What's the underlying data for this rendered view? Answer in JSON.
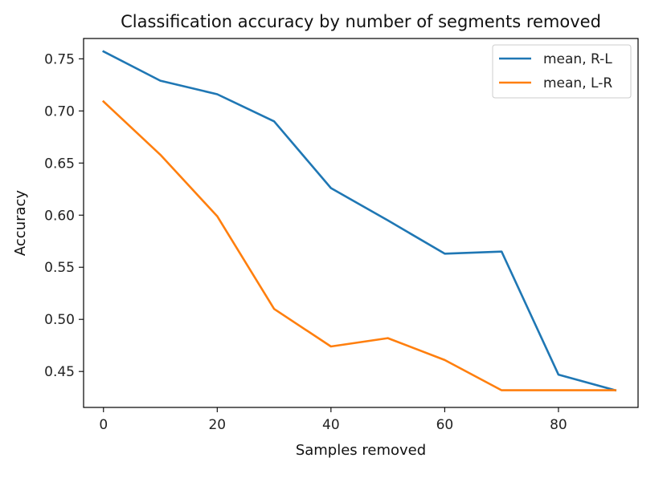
{
  "chart_data": {
    "type": "line",
    "title": "Classification accuracy by number of segments removed",
    "xlabel": "Samples removed",
    "ylabel": "Accuracy",
    "xlim": [
      -3.5,
      94
    ],
    "ylim": [
      0.4155,
      0.7695
    ],
    "xticks": [
      0,
      20,
      40,
      60,
      80
    ],
    "yticks": [
      0.45,
      0.5,
      0.55,
      0.6,
      0.65,
      0.7,
      0.75
    ],
    "ytick_labels": [
      "0.45",
      "0.50",
      "0.55",
      "0.60",
      "0.65",
      "0.70",
      "0.75"
    ],
    "grid": false,
    "legend_position": "top-right",
    "x": [
      0,
      10,
      20,
      30,
      40,
      50,
      60,
      70,
      80,
      90
    ],
    "series": [
      {
        "name": "mean, R-L",
        "color": "#1f77b4",
        "values": [
          0.757,
          0.729,
          0.716,
          0.69,
          0.626,
          0.595,
          0.563,
          0.565,
          0.447,
          0.432
        ]
      },
      {
        "name": "mean, L-R",
        "color": "#ff7f0e",
        "values": [
          0.709,
          0.658,
          0.599,
          0.51,
          0.474,
          0.482,
          0.461,
          0.432,
          0.432,
          0.432
        ]
      }
    ]
  }
}
